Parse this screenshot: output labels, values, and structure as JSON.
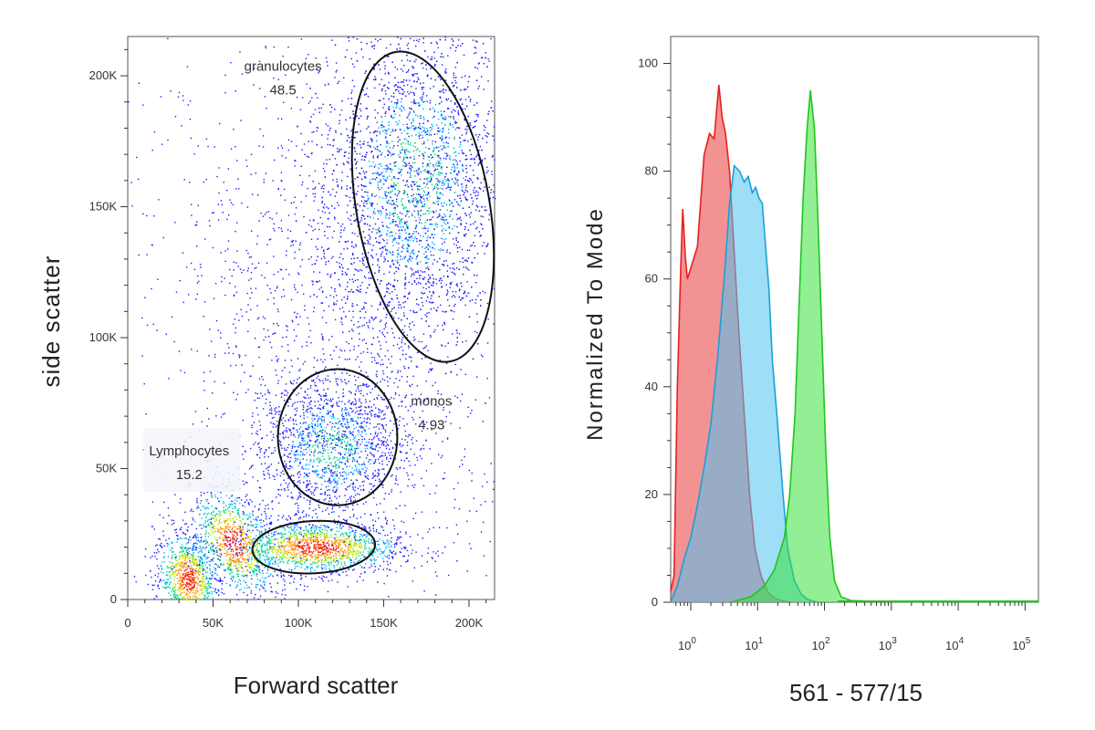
{
  "chart_data": [
    {
      "type": "scatter",
      "subtype": "flow-cytometry-density-dot-plot",
      "title": "",
      "xlabel": "Forward scatter",
      "ylabel": "side scatter",
      "xlim": [
        0,
        215000
      ],
      "ylim": [
        0,
        215000
      ],
      "x_ticks": [
        {
          "value": 0,
          "label": "0"
        },
        {
          "value": 50000,
          "label": "50K"
        },
        {
          "value": 100000,
          "label": "100K"
        },
        {
          "value": 150000,
          "label": "150K"
        },
        {
          "value": 200000,
          "label": "200K"
        }
      ],
      "y_ticks": [
        {
          "value": 0,
          "label": "0"
        },
        {
          "value": 50000,
          "label": "50K"
        },
        {
          "value": 100000,
          "label": "100K"
        },
        {
          "value": 150000,
          "label": "150K"
        },
        {
          "value": 200000,
          "label": "200K"
        }
      ],
      "density_colors": [
        "#1a1aff",
        "#00b4ff",
        "#00d68a",
        "#b8e000",
        "#ff9900",
        "#ff2200"
      ],
      "gate_color": "#111111",
      "populations": [
        {
          "name": "debris",
          "cx": 35000,
          "cy": 8000,
          "sx": 10000,
          "sy": 8000,
          "rot": -40,
          "count": 900,
          "hot": true
        },
        {
          "name": "lymph-core",
          "cx": 110000,
          "cy": 20000,
          "sx": 25000,
          "sy": 5000,
          "rot": 0,
          "count": 1400,
          "hot": true
        },
        {
          "name": "lymph-bridge",
          "cx": 62000,
          "cy": 22000,
          "sx": 14000,
          "sy": 9000,
          "rot": -30,
          "count": 900,
          "hot": true
        },
        {
          "name": "monos",
          "cx": 120000,
          "cy": 58000,
          "sx": 22000,
          "sy": 14000,
          "rot": 0,
          "count": 1500,
          "hot": false
        },
        {
          "name": "granulocytes",
          "cx": 168000,
          "cy": 160000,
          "sx": 26000,
          "sy": 30000,
          "rot": -10,
          "count": 3500,
          "hot": false
        },
        {
          "name": "background",
          "cx": 125000,
          "cy": 110000,
          "sx": 55000,
          "sy": 55000,
          "rot": 0,
          "count": 1800,
          "hot": false
        }
      ],
      "gates": [
        {
          "name": "granulocytes",
          "label": "granulocytes",
          "value": "48.5",
          "cx": 173000,
          "cy": 150000,
          "rx": 39000,
          "ry": 60000,
          "rot": -10,
          "label_x": 91000,
          "label_y": 202000
        },
        {
          "name": "monos",
          "label": "monos",
          "value": "4.93",
          "cx": 123000,
          "cy": 62000,
          "rx": 35000,
          "ry": 26000,
          "rot": 0,
          "label_x": 178000,
          "label_y": 74000
        },
        {
          "name": "lymphocytes",
          "label": "",
          "value": "",
          "cx": 109000,
          "cy": 20000,
          "rx": 36000,
          "ry": 10000,
          "rot": -3,
          "label_x": 0,
          "label_y": 0
        },
        {
          "name": "lymphocytes-text",
          "label": "Lymphocytes",
          "value": "15.2",
          "cx": 0,
          "cy": 0,
          "rx": 0,
          "ry": 0,
          "rot": 0,
          "label_x": 36000,
          "label_y": 55000
        }
      ]
    },
    {
      "type": "area",
      "subtype": "histogram-overlay",
      "title": "",
      "xlabel": "561 - 577/15",
      "ylabel": "Normalized To Mode",
      "xscale": "log",
      "xlim_log10": [
        -0.3,
        5.2
      ],
      "ylim": [
        0,
        105
      ],
      "x_ticks": [
        {
          "value": 0,
          "base": "10",
          "exp": "0"
        },
        {
          "value": 1,
          "base": "10",
          "exp": "1"
        },
        {
          "value": 2,
          "base": "10",
          "exp": "2"
        },
        {
          "value": 3,
          "base": "10",
          "exp": "3"
        },
        {
          "value": 4,
          "base": "10",
          "exp": "4"
        },
        {
          "value": 5,
          "base": "10",
          "exp": "5"
        }
      ],
      "y_ticks": [
        0,
        20,
        40,
        60,
        80,
        100
      ],
      "series": [
        {
          "name": "red-sample",
          "stroke": "#e8201f",
          "fill": "#e8383a",
          "points": [
            [
              -0.3,
              2
            ],
            [
              -0.25,
              5
            ],
            [
              -0.2,
              40
            ],
            [
              -0.15,
              62
            ],
            [
              -0.12,
              73
            ],
            [
              -0.08,
              64
            ],
            [
              -0.05,
              60
            ],
            [
              0,
              62
            ],
            [
              0.1,
              66
            ],
            [
              0.2,
              83
            ],
            [
              0.28,
              87
            ],
            [
              0.35,
              86
            ],
            [
              0.42,
              96
            ],
            [
              0.47,
              90
            ],
            [
              0.52,
              87
            ],
            [
              0.58,
              80
            ],
            [
              0.65,
              65
            ],
            [
              0.72,
              50
            ],
            [
              0.8,
              35
            ],
            [
              0.88,
              20
            ],
            [
              0.96,
              10
            ],
            [
              1.05,
              5
            ],
            [
              1.15,
              2
            ],
            [
              1.25,
              0.8
            ],
            [
              1.35,
              0.3
            ],
            [
              1.5,
              0
            ]
          ]
        },
        {
          "name": "blue-sample",
          "stroke": "#1aa0d8",
          "fill": "#4ec3ee",
          "points": [
            [
              -0.3,
              0
            ],
            [
              -0.2,
              3
            ],
            [
              -0.1,
              8
            ],
            [
              0,
              12
            ],
            [
              0.1,
              18
            ],
            [
              0.2,
              25
            ],
            [
              0.3,
              33
            ],
            [
              0.4,
              45
            ],
            [
              0.5,
              60
            ],
            [
              0.58,
              74
            ],
            [
              0.65,
              81
            ],
            [
              0.73,
              80
            ],
            [
              0.8,
              78
            ],
            [
              0.86,
              79
            ],
            [
              0.92,
              76
            ],
            [
              0.97,
              77
            ],
            [
              1.02,
              75
            ],
            [
              1.07,
              74
            ],
            [
              1.12,
              66
            ],
            [
              1.17,
              58
            ],
            [
              1.22,
              45
            ],
            [
              1.3,
              33
            ],
            [
              1.38,
              20
            ],
            [
              1.45,
              10
            ],
            [
              1.55,
              4
            ],
            [
              1.65,
              1.5
            ],
            [
              1.75,
              0.5
            ],
            [
              1.9,
              0
            ]
          ]
        },
        {
          "name": "green-sample",
          "stroke": "#22c41f",
          "fill": "#38e23a",
          "points": [
            [
              0.6,
              0
            ],
            [
              0.9,
              1
            ],
            [
              1.1,
              3
            ],
            [
              1.25,
              6
            ],
            [
              1.4,
              12
            ],
            [
              1.48,
              20
            ],
            [
              1.56,
              35
            ],
            [
              1.62,
              55
            ],
            [
              1.68,
              75
            ],
            [
              1.74,
              88
            ],
            [
              1.79,
              95
            ],
            [
              1.85,
              88
            ],
            [
              1.9,
              72
            ],
            [
              1.96,
              50
            ],
            [
              2.02,
              28
            ],
            [
              2.08,
              12
            ],
            [
              2.15,
              4
            ],
            [
              2.25,
              1
            ],
            [
              2.4,
              0.3
            ],
            [
              3,
              0.1
            ],
            [
              4,
              0.1
            ],
            [
              5.15,
              0.1
            ],
            [
              5.2,
              0
            ]
          ]
        }
      ]
    }
  ]
}
